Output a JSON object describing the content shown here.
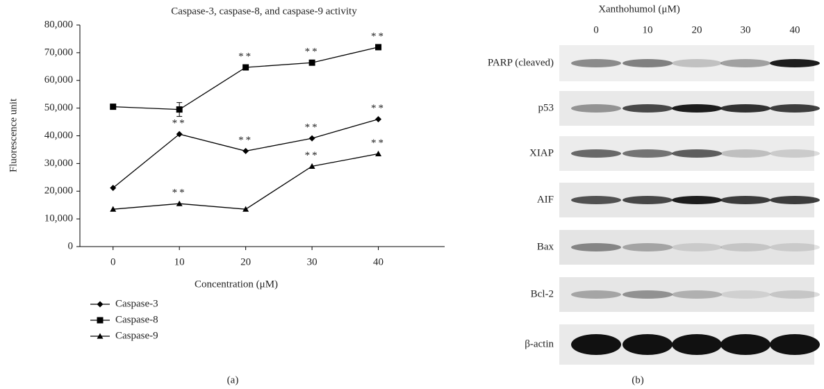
{
  "chart_data": {
    "type": "line",
    "title": "Caspase-3, caspase-8, and caspase-9 activity",
    "x_label": "Concentration (μM)",
    "y_label": "Fluorescence unit",
    "x": [
      0,
      10,
      20,
      30,
      40
    ],
    "xlim": [
      -5,
      50
    ],
    "xticks": [
      0,
      10,
      20,
      30,
      40
    ],
    "ylim": [
      0,
      80000
    ],
    "yticks": [
      0,
      {
        "value": 10000,
        "label": "10,000"
      },
      {
        "value": 20000,
        "label": "20,000"
      },
      {
        "value": 30000,
        "label": "30,000"
      },
      {
        "value": 40000,
        "label": "40,000"
      },
      {
        "value": 50000,
        "label": "50,000"
      },
      {
        "value": 60000,
        "label": "60,000"
      },
      {
        "value": 70000,
        "label": "70,000"
      },
      {
        "value": 80000,
        "label": "80,000"
      }
    ],
    "grid": false,
    "legend": "bottom-left",
    "series": [
      {
        "name": "Caspase-3",
        "color": "#000000",
        "marker": "diamond",
        "values": [
          21200,
          40600,
          34500,
          39100,
          46000
        ],
        "annotations": [
          null,
          "**",
          "**",
          "**",
          "**"
        ]
      },
      {
        "name": "Caspase-8",
        "color": "#000000",
        "marker": "square",
        "values": [
          50500,
          49500,
          64700,
          66400,
          72000
        ],
        "errors": [
          null,
          2500,
          null,
          null,
          null
        ],
        "annotations": [
          null,
          null,
          "**",
          "**",
          "**"
        ]
      },
      {
        "name": "Caspase-9",
        "color": "#000000",
        "marker": "triangle",
        "values": [
          13500,
          15500,
          13500,
          29000,
          33500
        ],
        "annotations": [
          null,
          "**",
          null,
          "**",
          "**"
        ]
      }
    ]
  },
  "blot": {
    "title": "Xanthohumol (μM)",
    "lanes": [
      "0",
      "10",
      "20",
      "30",
      "40"
    ],
    "rows": [
      "PARP (cleaved)",
      "p53",
      "XIAP",
      "AIF",
      "Bax",
      "Bcl-2",
      "β-actin"
    ]
  },
  "panel_labels": [
    "(a)",
    "(b)"
  ]
}
